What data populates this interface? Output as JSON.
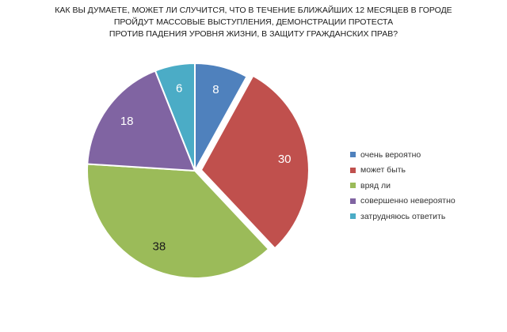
{
  "chart_data": {
    "type": "pie",
    "title_lines": [
      "КАК ВЫ ДУМАЕТЕ, МОЖЕТ ЛИ СЛУЧИТСЯ, ЧТО В ТЕЧЕНИЕ БЛИЖАЙШИХ 12 МЕСЯЦЕВ В ГОРОДЕ",
      "ПРОЙДУТ МАССОВЫЕ ВЫСТУПЛЕНИЯ, ДЕМОНСТРАЦИИ ПРОТЕСТА",
      "ПРОТИВ ПАДЕНИЯ УРОВНЯ ЖИЗНИ, В ЗАЩИТУ ГРАЖДАНСКИХ ПРАВ?"
    ],
    "categories": [
      "очень вероятно",
      "может быть",
      "вряд ли",
      "совершенно невероятно",
      "затрудняюсь ответить"
    ],
    "values": [
      8,
      30,
      38,
      18,
      6
    ],
    "data_labels": [
      "8",
      "30",
      "38",
      "18",
      "6"
    ],
    "colors": [
      "#4F81BD",
      "#C0504D",
      "#9BBB59",
      "#8064A2",
      "#4BACC6"
    ],
    "exploded_slice": "может быть",
    "legend_position": "right"
  }
}
